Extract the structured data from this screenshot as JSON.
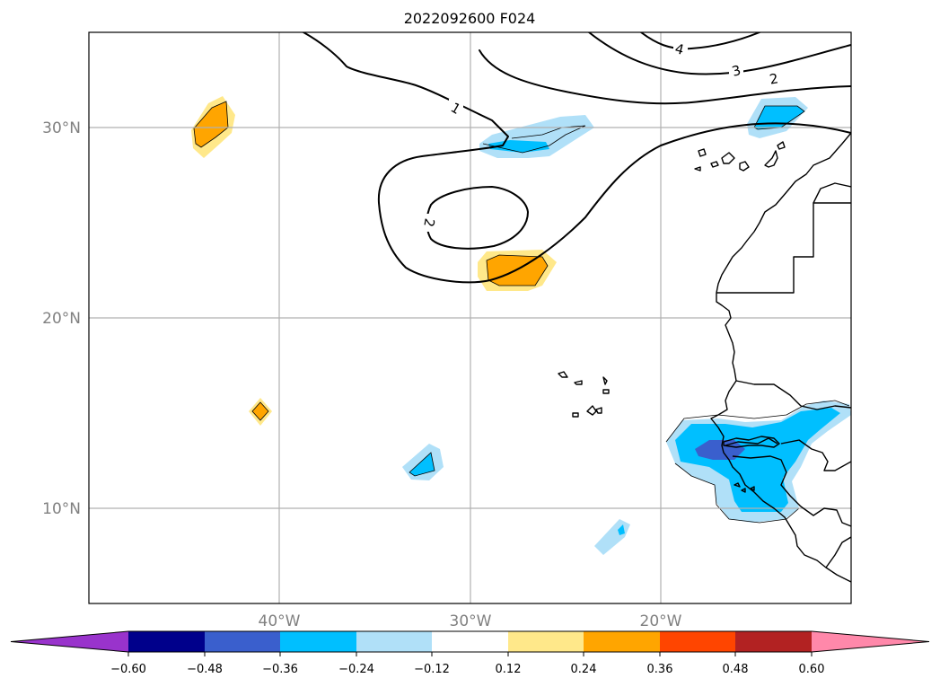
{
  "title": "2022092600 F024",
  "map": {
    "lat_range": [
      5,
      35
    ],
    "lon_range": [
      -50,
      -10
    ],
    "lat_labels": [
      {
        "lat": 30,
        "text": "30°N"
      },
      {
        "lat": 20,
        "text": "20°N"
      },
      {
        "lat": 10,
        "text": "10°N"
      }
    ],
    "lon_labels": [
      {
        "lon": -40,
        "text": "40°W"
      },
      {
        "lon": -30,
        "text": "30°W"
      },
      {
        "lon": -20,
        "text": "20°W"
      }
    ],
    "contour_labels": [
      "4",
      "3",
      "2",
      "1",
      "2"
    ]
  },
  "colorbar": {
    "ticks": [
      "−0.60",
      "−0.48",
      "−0.36",
      "−0.24",
      "−0.12",
      "0.12",
      "0.24",
      "0.36",
      "0.48",
      "0.60"
    ],
    "colors": {
      "under": "#9933cc",
      "c1": "#00008b",
      "c2": "#3a5fcd",
      "c3": "#00bfff",
      "c4": "#b0e0f8",
      "c5": "#ffffff",
      "c6": "#ffe88a",
      "c7": "#ffa500",
      "c8": "#ff4500",
      "c9": "#b22222",
      "over": "#ff88aa"
    }
  }
}
